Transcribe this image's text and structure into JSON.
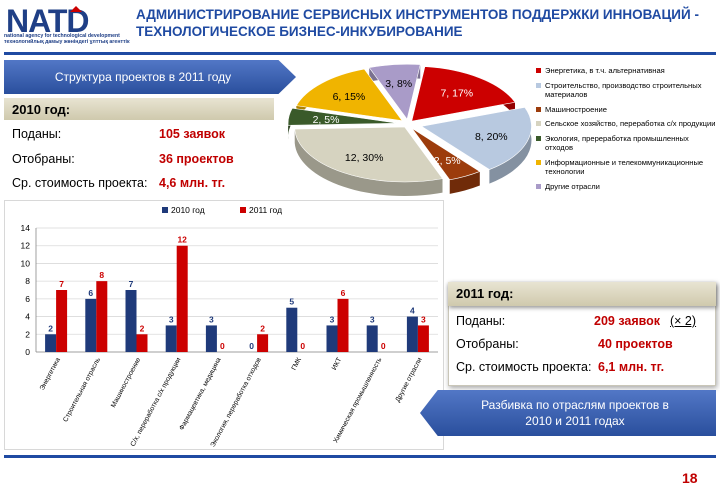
{
  "header": {
    "logo_text": "NATD",
    "logo_subtitle": "national agency for technological development\nтехнологийлық дамыу жөніндегі ұлттық агенттік",
    "title": "АДМИНИСТРИРОВАНИЕ СЕРВИСНЫХ ИНСТРУМЕНТОВ ПОДДЕРЖКИ ИННОВАЦИЙ -\nТЕХНОЛОГИЧЕСКОЕ БИЗНЕС-ИНКУБИРОВАНИЕ"
  },
  "arrows": {
    "top": "Структура проектов в 2011 году",
    "bottom": "Разбивка по отраслям проектов в\n2010 и 2011 годах"
  },
  "stats_2010": {
    "heading": "2010 год:",
    "rows": [
      {
        "label": "Поданы:",
        "value": "105 заявок"
      },
      {
        "label": "Отобраны:",
        "value": "36 проектов"
      },
      {
        "label": "Ср. стоимость проекта:",
        "value": "4,6 млн. тг."
      }
    ]
  },
  "stats_2011": {
    "heading": "2011 год:",
    "rows": [
      {
        "label": "Поданы:",
        "value": "209 заявок",
        "extra": "(× 2)"
      },
      {
        "label": "Отобраны:",
        "value": "40 проектов"
      },
      {
        "label": "Ср. стоимость проекта:",
        "value": "6,1 млн. тг."
      }
    ]
  },
  "page_number": "18",
  "colors": {
    "brand_blue": "#1f4aa2",
    "accent_red": "#c00000",
    "series_2010": "#1f3a7a",
    "series_2011": "#cc0000"
  },
  "chart_data": [
    {
      "type": "pie",
      "title": "",
      "slices": [
        {
          "name": "Энергетика, в т.ч. альтернативная",
          "value": 7,
          "label": "7, 17%",
          "color": "#cc0000"
        },
        {
          "name": "Строительство, производство строительных материалов",
          "value": 8,
          "label": "8, 20%",
          "color": "#b8c9e0"
        },
        {
          "name": "Машиностроение",
          "value": 2,
          "label": "2, 5%",
          "color": "#9c3c0c"
        },
        {
          "name": "Сельское хозяйство, переработка с/х продукции",
          "value": 12,
          "label": "12, 30%",
          "color": "#d6d3c0"
        },
        {
          "name": "Экология, пререработка промышленных отходов",
          "value": 2,
          "label": "2, 5%",
          "color": "#3a5a2a"
        },
        {
          "name": "Информационные и телекоммуникационные технологии",
          "value": 6,
          "label": "6, 15%",
          "color": "#f0b400"
        },
        {
          "name": "Другие отрасли",
          "value": 3,
          "label": "3, 8%",
          "color": "#a99bc8"
        }
      ]
    },
    {
      "type": "bar",
      "title": "",
      "categories": [
        "Энергетика",
        "Строительная отрасль",
        "Машиностроение",
        "С/х, переработка с/х продукции",
        "Фармацевтика, медицина",
        "Экология, переработка отходов",
        "ГМК",
        "ИКТ",
        "Химическая промышленность",
        "Другие отрасли"
      ],
      "series": [
        {
          "name": "2010 год",
          "values": [
            2,
            6,
            7,
            3,
            3,
            0,
            5,
            3,
            3,
            4
          ]
        },
        {
          "name": "2011 год",
          "values": [
            7,
            8,
            2,
            12,
            0,
            2,
            0,
            6,
            0,
            3
          ]
        }
      ],
      "ylim": [
        0,
        14
      ],
      "yticks": [
        0,
        2,
        4,
        6,
        8,
        10,
        12,
        14
      ],
      "grid": true,
      "legend": "top"
    }
  ]
}
